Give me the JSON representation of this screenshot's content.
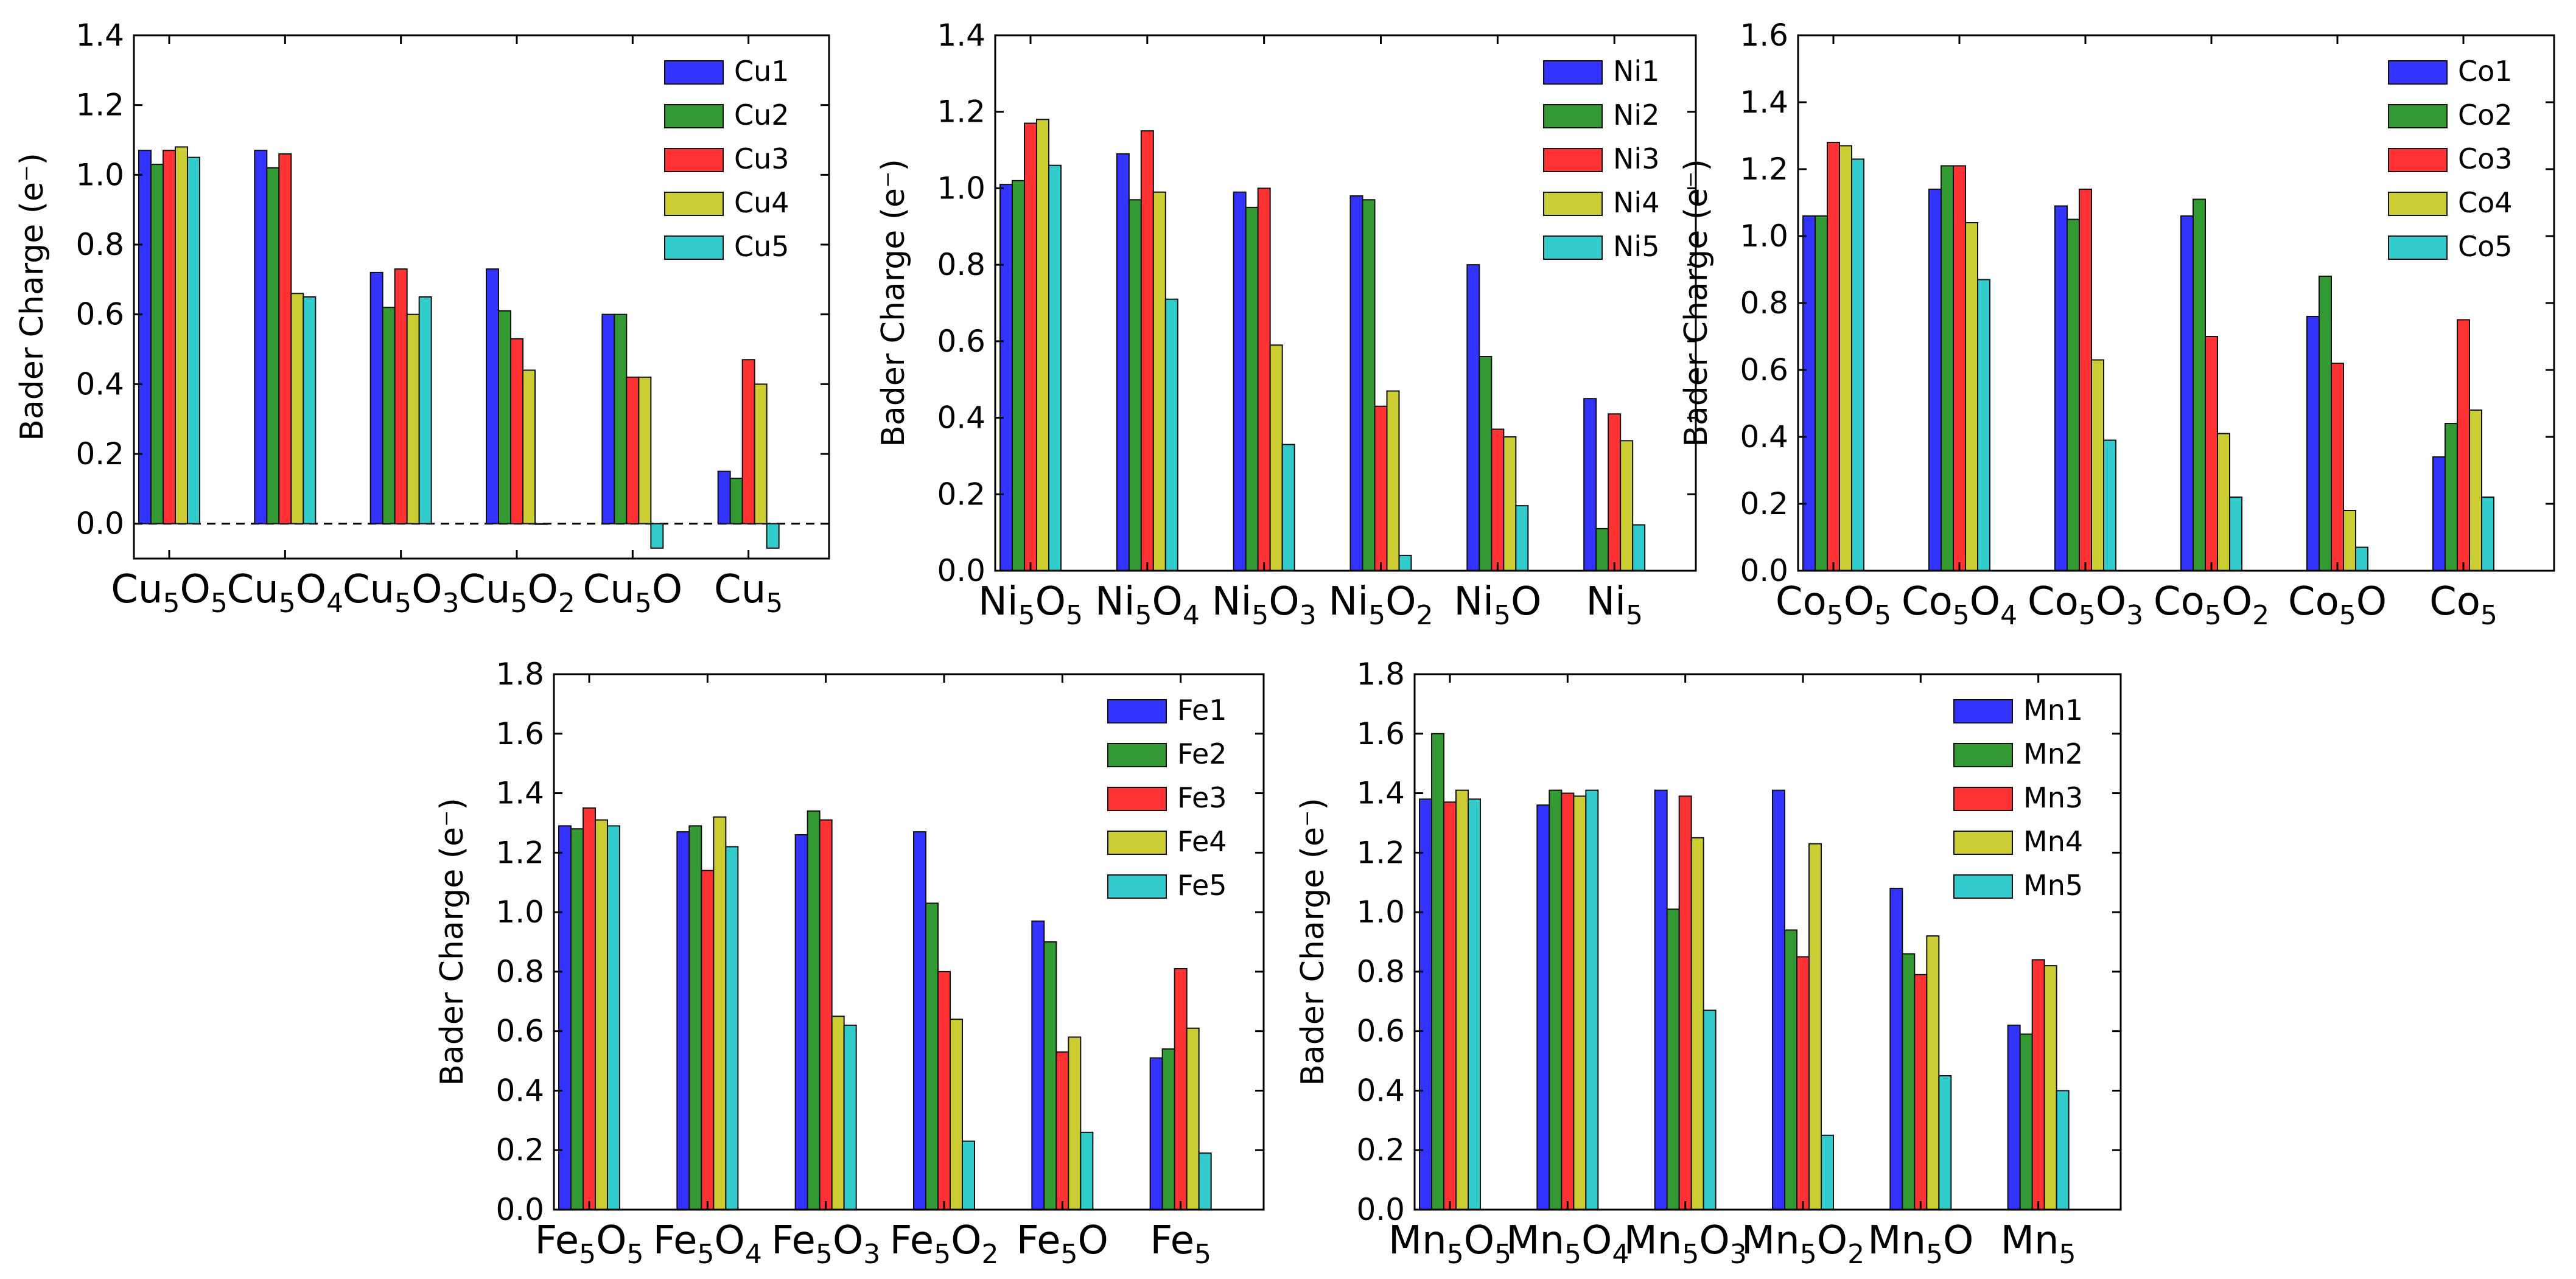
{
  "colors": [
    "#3333ff",
    "#339933",
    "#ff3333",
    "#cccc33",
    "#33cccc"
  ],
  "chart_data": [
    {
      "type": "bar",
      "element": "Cu",
      "ylabel": "Bader Charge (e⁻)",
      "ylim": [
        -0.1,
        1.4
      ],
      "yticks": [
        "0.0",
        "0.2",
        "0.4",
        "0.6",
        "0.8",
        "1.0",
        "1.2",
        "1.4"
      ],
      "zero_dashed_line": true,
      "legend_position": "top-right",
      "categories": [
        {
          "base": "Cu",
          "sub1": "5",
          "mid": "O",
          "sub2": "5"
        },
        {
          "base": "Cu",
          "sub1": "5",
          "mid": "O",
          "sub2": "4"
        },
        {
          "base": "Cu",
          "sub1": "5",
          "mid": "O",
          "sub2": "3"
        },
        {
          "base": "Cu",
          "sub1": "5",
          "mid": "O",
          "sub2": "2"
        },
        {
          "base": "Cu",
          "sub1": "5",
          "mid": "O",
          "sub2": ""
        },
        {
          "base": "Cu",
          "sub1": "5",
          "mid": "",
          "sub2": ""
        }
      ],
      "series": [
        {
          "name": "Cu1",
          "values": [
            1.07,
            1.07,
            0.72,
            0.73,
            0.6,
            0.15
          ]
        },
        {
          "name": "Cu2",
          "values": [
            1.03,
            1.02,
            0.62,
            0.61,
            0.6,
            0.13
          ]
        },
        {
          "name": "Cu3",
          "values": [
            1.07,
            1.06,
            0.73,
            0.53,
            0.42,
            0.47
          ]
        },
        {
          "name": "Cu4",
          "values": [
            1.08,
            0.66,
            0.6,
            0.44,
            0.42,
            0.4
          ]
        },
        {
          "name": "Cu5",
          "values": [
            1.05,
            0.65,
            0.65,
            0.0,
            -0.07,
            -0.07
          ]
        }
      ]
    },
    {
      "type": "bar",
      "element": "Ni",
      "ylabel": "Bader Charge (e⁻)",
      "ylim": [
        0.0,
        1.4
      ],
      "yticks": [
        "0.0",
        "0.2",
        "0.4",
        "0.6",
        "0.8",
        "1.0",
        "1.2",
        "1.4"
      ],
      "zero_dashed_line": false,
      "legend_position": "top-right",
      "categories": [
        {
          "base": "Ni",
          "sub1": "5",
          "mid": "O",
          "sub2": "5"
        },
        {
          "base": "Ni",
          "sub1": "5",
          "mid": "O",
          "sub2": "4"
        },
        {
          "base": "Ni",
          "sub1": "5",
          "mid": "O",
          "sub2": "3"
        },
        {
          "base": "Ni",
          "sub1": "5",
          "mid": "O",
          "sub2": "2"
        },
        {
          "base": "Ni",
          "sub1": "5",
          "mid": "O",
          "sub2": ""
        },
        {
          "base": "Ni",
          "sub1": "5",
          "mid": "",
          "sub2": ""
        }
      ],
      "series": [
        {
          "name": "Ni1",
          "values": [
            1.01,
            1.09,
            0.99,
            0.98,
            0.8,
            0.45
          ]
        },
        {
          "name": "Ni2",
          "values": [
            1.02,
            0.97,
            0.95,
            0.97,
            0.56,
            0.11
          ]
        },
        {
          "name": "Ni3",
          "values": [
            1.17,
            1.15,
            1.0,
            0.43,
            0.37,
            0.41
          ]
        },
        {
          "name": "Ni4",
          "values": [
            1.18,
            0.99,
            0.59,
            0.47,
            0.35,
            0.34
          ]
        },
        {
          "name": "Ni5",
          "values": [
            1.06,
            0.71,
            0.33,
            0.04,
            0.17,
            0.12
          ]
        }
      ]
    },
    {
      "type": "bar",
      "element": "Co",
      "ylabel": "Bader Charge (e⁻)",
      "ylim": [
        0.0,
        1.6
      ],
      "yticks": [
        "0.0",
        "0.2",
        "0.4",
        "0.6",
        "0.8",
        "1.0",
        "1.2",
        "1.4",
        "1.6"
      ],
      "zero_dashed_line": false,
      "legend_position": "top-right",
      "categories": [
        {
          "base": "Co",
          "sub1": "5",
          "mid": "O",
          "sub2": "5"
        },
        {
          "base": "Co",
          "sub1": "5",
          "mid": "O",
          "sub2": "4"
        },
        {
          "base": "Co",
          "sub1": "5",
          "mid": "O",
          "sub2": "3"
        },
        {
          "base": "Co",
          "sub1": "5",
          "mid": "O",
          "sub2": "2"
        },
        {
          "base": "Co",
          "sub1": "5",
          "mid": "O",
          "sub2": ""
        },
        {
          "base": "Co",
          "sub1": "5",
          "mid": "",
          "sub2": ""
        }
      ],
      "series": [
        {
          "name": "Co1",
          "values": [
            1.06,
            1.14,
            1.09,
            1.06,
            0.76,
            0.34
          ]
        },
        {
          "name": "Co2",
          "values": [
            1.06,
            1.21,
            1.05,
            1.11,
            0.88,
            0.44
          ]
        },
        {
          "name": "Co3",
          "values": [
            1.28,
            1.21,
            1.14,
            0.7,
            0.62,
            0.75
          ]
        },
        {
          "name": "Co4",
          "values": [
            1.27,
            1.04,
            0.63,
            0.41,
            0.18,
            0.48
          ]
        },
        {
          "name": "Co5",
          "values": [
            1.23,
            0.87,
            0.39,
            0.22,
            0.07,
            0.22
          ]
        }
      ]
    },
    {
      "type": "bar",
      "element": "Fe",
      "ylabel": "Bader Charge (e⁻)",
      "ylim": [
        0.0,
        1.8
      ],
      "yticks": [
        "0.0",
        "0.2",
        "0.4",
        "0.6",
        "0.8",
        "1.0",
        "1.2",
        "1.4",
        "1.6",
        "1.8"
      ],
      "zero_dashed_line": false,
      "legend_position": "top-right",
      "categories": [
        {
          "base": "Fe",
          "sub1": "5",
          "mid": "O",
          "sub2": "5"
        },
        {
          "base": "Fe",
          "sub1": "5",
          "mid": "O",
          "sub2": "4"
        },
        {
          "base": "Fe",
          "sub1": "5",
          "mid": "O",
          "sub2": "3"
        },
        {
          "base": "Fe",
          "sub1": "5",
          "mid": "O",
          "sub2": "2"
        },
        {
          "base": "Fe",
          "sub1": "5",
          "mid": "O",
          "sub2": ""
        },
        {
          "base": "Fe",
          "sub1": "5",
          "mid": "",
          "sub2": ""
        }
      ],
      "series": [
        {
          "name": "Fe1",
          "values": [
            1.29,
            1.27,
            1.26,
            1.27,
            0.97,
            0.51
          ]
        },
        {
          "name": "Fe2",
          "values": [
            1.28,
            1.29,
            1.34,
            1.03,
            0.9,
            0.54
          ]
        },
        {
          "name": "Fe3",
          "values": [
            1.35,
            1.14,
            1.31,
            0.8,
            0.53,
            0.81
          ]
        },
        {
          "name": "Fe4",
          "values": [
            1.31,
            1.32,
            0.65,
            0.64,
            0.58,
            0.61
          ]
        },
        {
          "name": "Fe5",
          "values": [
            1.29,
            1.22,
            0.62,
            0.23,
            0.26,
            0.19
          ]
        }
      ]
    },
    {
      "type": "bar",
      "element": "Mn",
      "ylabel": "Bader Charge (e⁻)",
      "ylim": [
        0.0,
        1.8
      ],
      "yticks": [
        "0.0",
        "0.2",
        "0.4",
        "0.6",
        "0.8",
        "1.0",
        "1.2",
        "1.4",
        "1.6",
        "1.8"
      ],
      "zero_dashed_line": false,
      "legend_position": "top-right",
      "categories": [
        {
          "base": "Mn",
          "sub1": "5",
          "mid": "O",
          "sub2": "5"
        },
        {
          "base": "Mn",
          "sub1": "5",
          "mid": "O",
          "sub2": "4"
        },
        {
          "base": "Mn",
          "sub1": "5",
          "mid": "O",
          "sub2": "3"
        },
        {
          "base": "Mn",
          "sub1": "5",
          "mid": "O",
          "sub2": "2"
        },
        {
          "base": "Mn",
          "sub1": "5",
          "mid": "O",
          "sub2": ""
        },
        {
          "base": "Mn",
          "sub1": "5",
          "mid": "",
          "sub2": ""
        }
      ],
      "series": [
        {
          "name": "Mn1",
          "values": [
            1.38,
            1.36,
            1.41,
            1.41,
            1.08,
            0.62
          ]
        },
        {
          "name": "Mn2",
          "values": [
            1.6,
            1.41,
            1.01,
            0.94,
            0.86,
            0.59
          ]
        },
        {
          "name": "Mn3",
          "values": [
            1.37,
            1.4,
            1.39,
            0.85,
            0.79,
            0.84
          ]
        },
        {
          "name": "Mn4",
          "values": [
            1.41,
            1.39,
            1.25,
            1.23,
            0.92,
            0.82
          ]
        },
        {
          "name": "Mn5",
          "values": [
            1.38,
            1.41,
            0.67,
            0.25,
            0.45,
            0.4
          ]
        }
      ]
    }
  ]
}
